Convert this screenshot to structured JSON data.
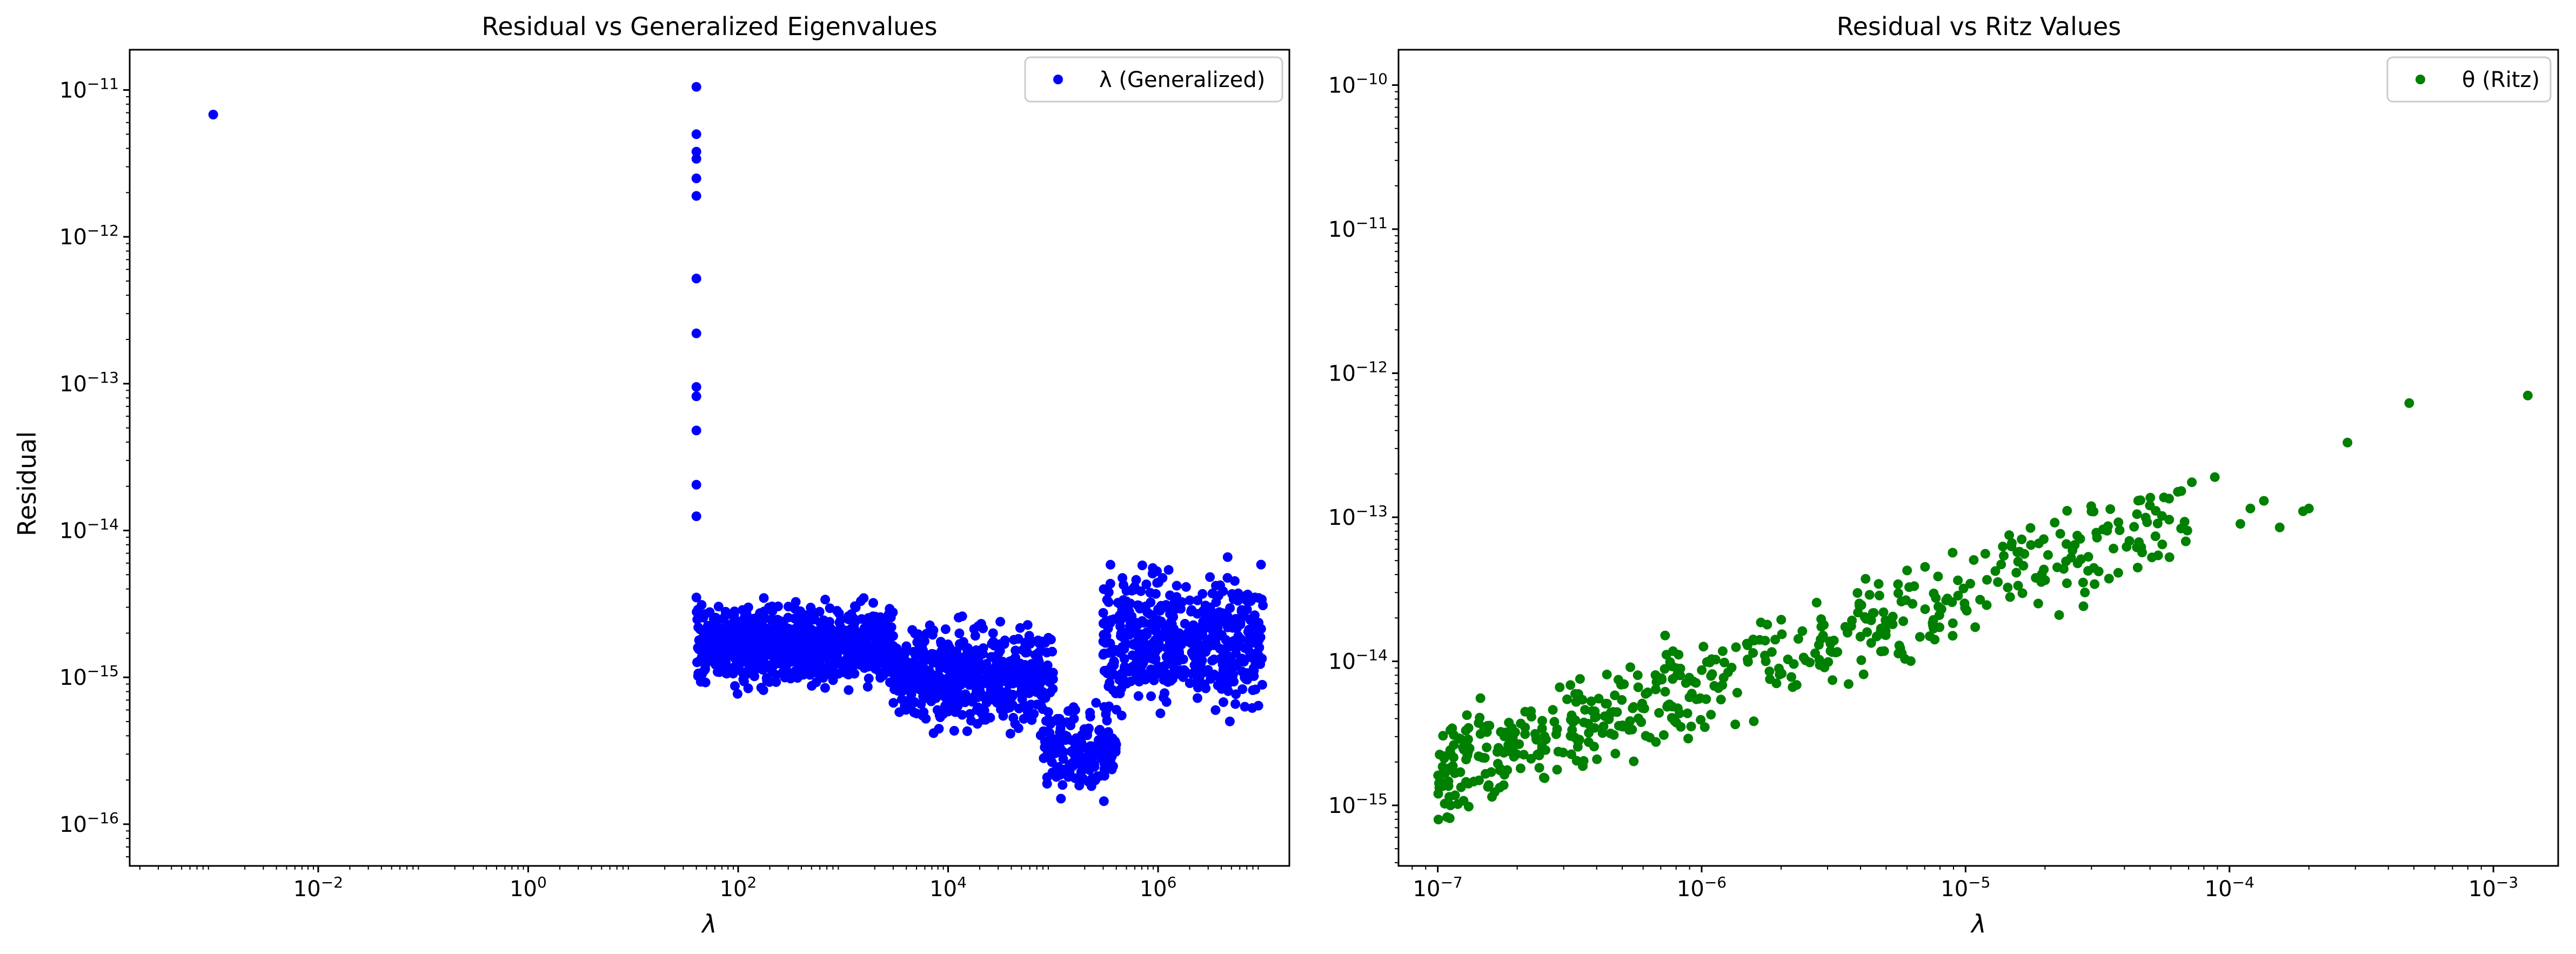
{
  "chart_data": [
    {
      "type": "scatter",
      "title": "Residual vs Generalized Eigenvalues",
      "xlabel": "λ",
      "ylabel": "Residual",
      "xscale": "log",
      "yscale": "log",
      "xlim": [
        0.00016,
        17800000
      ],
      "ylim": [
        5.2e-17,
        1.88e-11
      ],
      "xticks": [
        {
          "label": "10",
          "exp": "−2",
          "value": 0.01
        },
        {
          "label": "10",
          "exp": "0",
          "value": 1
        },
        {
          "label": "10",
          "exp": "2",
          "value": 100
        },
        {
          "label": "10",
          "exp": "4",
          "value": 10000
        },
        {
          "label": "10",
          "exp": "6",
          "value": 1000000
        }
      ],
      "yticks": [
        {
          "label": "10",
          "exp": "−16",
          "value": 1e-16
        },
        {
          "label": "10",
          "exp": "−15",
          "value": 1e-15
        },
        {
          "label": "10",
          "exp": "−14",
          "value": 1e-14
        },
        {
          "label": "10",
          "exp": "−13",
          "value": 1e-13
        },
        {
          "label": "10",
          "exp": "−12",
          "value": 1e-12
        },
        {
          "label": "10",
          "exp": "−11",
          "value": 1e-11
        }
      ],
      "grid": false,
      "legend_position": "top-right",
      "series": [
        {
          "name": "λ (Generalized)",
          "color": "#0000ff",
          "x": [
            0.001,
            40,
            40,
            40,
            40,
            40,
            40,
            40,
            40,
            40,
            40,
            40,
            40,
            40,
            40
          ],
          "y": [
            6.8e-12,
            1.05e-11,
            5e-12,
            3.8e-12,
            3.4e-12,
            2.5e-12,
            1.9e-12,
            5.2e-13,
            2.2e-13,
            9.5e-14,
            8.2e-14,
            4.8e-14,
            2.05e-14,
            1.25e-14,
            3.5e-15
          ],
          "clusters": [
            {
              "x_range": [
                40,
                3000
              ],
              "y_range": [
                7e-16,
                4e-15
              ],
              "count": 800
            },
            {
              "x_range": [
                3000,
                100000
              ],
              "y_range": [
                3.5e-16,
                3e-15
              ],
              "count": 550
            },
            {
              "x_range": [
                80000,
                400000
              ],
              "y_range": [
                1.3e-16,
                8e-16
              ],
              "count": 170
            },
            {
              "x_range": [
                300000,
                10000000
              ],
              "y_range": [
                4e-16,
                8e-15
              ],
              "count": 520
            }
          ]
        }
      ]
    },
    {
      "type": "scatter",
      "title": "Residual vs Ritz Values",
      "xlabel": "λ",
      "ylabel": "",
      "xscale": "log",
      "yscale": "log",
      "xlim": [
        7.1e-08,
        0.00176
      ],
      "ylim": [
        3.8e-16,
        1.76e-10
      ],
      "xticks": [
        {
          "label": "10",
          "exp": "−7",
          "value": 1e-07
        },
        {
          "label": "10",
          "exp": "−6",
          "value": 1e-06
        },
        {
          "label": "10",
          "exp": "−5",
          "value": 1e-05
        },
        {
          "label": "10",
          "exp": "−4",
          "value": 0.0001
        },
        {
          "label": "10",
          "exp": "−3",
          "value": 0.001
        }
      ],
      "yticks": [
        {
          "label": "10",
          "exp": "−15",
          "value": 1e-15
        },
        {
          "label": "10",
          "exp": "−14",
          "value": 1e-14
        },
        {
          "label": "10",
          "exp": "−13",
          "value": 1e-13
        },
        {
          "label": "10",
          "exp": "−12",
          "value": 1e-12
        },
        {
          "label": "10",
          "exp": "−11",
          "value": 1e-11
        },
        {
          "label": "10",
          "exp": "−10",
          "value": 1e-10
        }
      ],
      "grid": false,
      "legend_position": "top-right",
      "series": [
        {
          "name": "θ (Ritz)",
          "color": "#008000",
          "x": [
            7.2e-05,
            8.8e-05,
            0.00011,
            0.00012,
            0.000135,
            0.000155,
            0.00019,
            0.0002,
            0.00028,
            0.00048,
            0.00135
          ],
          "y": [
            1.75e-13,
            1.9e-13,
            9e-14,
            1.15e-13,
            1.3e-13,
            8.5e-14,
            1.1e-13,
            1.15e-13,
            3.3e-13,
            6.2e-13,
            7e-13
          ],
          "trend_points": 520,
          "trend_x_range": [
            1e-07,
            7e-05
          ],
          "trend_y_at_start": 1.6e-15,
          "trend_y_at_end": 1e-13,
          "trend_spread_decades": 0.5
        }
      ]
    }
  ]
}
